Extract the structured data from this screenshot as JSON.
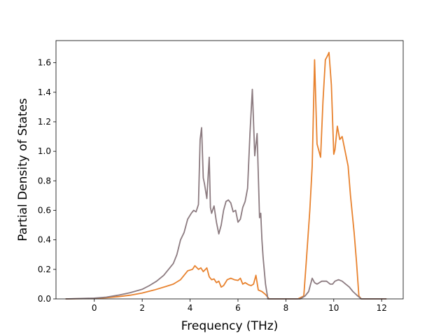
{
  "chart_data": {
    "type": "line",
    "title": "",
    "xlabel": "Frequency (THz)",
    "ylabel": "Partial Density of States",
    "xlim": [
      -1.6,
      12.9
    ],
    "ylim": [
      0.0,
      1.75
    ],
    "xticks": [
      0,
      2,
      4,
      6,
      8,
      10,
      12
    ],
    "yticks": [
      0.0,
      0.2,
      0.4,
      0.6,
      0.8,
      1.0,
      1.2,
      1.4,
      1.6
    ],
    "grid": false,
    "legend": "none",
    "series": [
      {
        "color": "#e8822e",
        "x": [
          -1.2,
          0.0,
          0.5,
          1.0,
          1.5,
          2.0,
          2.5,
          3.0,
          3.3,
          3.6,
          3.9,
          4.1,
          4.2,
          4.35,
          4.45,
          4.55,
          4.7,
          4.8,
          4.9,
          5.0,
          5.1,
          5.2,
          5.3,
          5.4,
          5.55,
          5.7,
          5.85,
          6.0,
          6.1,
          6.2,
          6.3,
          6.45,
          6.55,
          6.65,
          6.75,
          6.85,
          7.0,
          7.15,
          7.3,
          7.45,
          7.6,
          8.0,
          8.5,
          8.75,
          8.85,
          9.0,
          9.1,
          9.2,
          9.3,
          9.45,
          9.55,
          9.65,
          9.75,
          9.8,
          9.9,
          10.0,
          10.05,
          10.15,
          10.25,
          10.35,
          10.45,
          10.6,
          10.7,
          10.85,
          10.95,
          11.05,
          11.15,
          11.5,
          12.2
        ],
        "y": [
          0.0,
          0.003,
          0.008,
          0.015,
          0.025,
          0.04,
          0.06,
          0.085,
          0.1,
          0.13,
          0.19,
          0.2,
          0.225,
          0.2,
          0.21,
          0.185,
          0.21,
          0.15,
          0.13,
          0.135,
          0.11,
          0.12,
          0.08,
          0.09,
          0.13,
          0.14,
          0.13,
          0.125,
          0.14,
          0.1,
          0.11,
          0.095,
          0.09,
          0.1,
          0.16,
          0.06,
          0.05,
          0.03,
          0.0,
          0.0,
          0.0,
          0.0,
          0.0,
          0.02,
          0.25,
          0.6,
          0.9,
          1.62,
          1.05,
          0.96,
          1.34,
          1.62,
          1.65,
          1.67,
          1.45,
          0.98,
          1.01,
          1.17,
          1.08,
          1.1,
          1.02,
          0.9,
          0.7,
          0.45,
          0.25,
          0.02,
          0.0,
          0.0,
          0.0
        ]
      },
      {
        "color": "#8c7b80",
        "x": [
          -1.2,
          0.0,
          0.5,
          1.0,
          1.5,
          2.0,
          2.3,
          2.6,
          2.9,
          3.1,
          3.3,
          3.45,
          3.6,
          3.75,
          3.9,
          4.05,
          4.15,
          4.25,
          4.35,
          4.42,
          4.48,
          4.55,
          4.6,
          4.7,
          4.8,
          4.85,
          4.9,
          5.0,
          5.1,
          5.2,
          5.3,
          5.4,
          5.5,
          5.6,
          5.7,
          5.8,
          5.9,
          6.0,
          6.1,
          6.2,
          6.3,
          6.4,
          6.5,
          6.6,
          6.65,
          6.7,
          6.8,
          6.9,
          6.95,
          7.0,
          7.05,
          7.15,
          7.25,
          7.35,
          7.45,
          7.6,
          8.0,
          8.6,
          8.8,
          8.95,
          9.1,
          9.2,
          9.3,
          9.5,
          9.7,
          9.85,
          9.95,
          10.05,
          10.2,
          10.35,
          10.5,
          10.65,
          10.8,
          11.0,
          11.15,
          11.5,
          12.2
        ],
        "y": [
          0.0,
          0.005,
          0.012,
          0.025,
          0.042,
          0.065,
          0.09,
          0.12,
          0.16,
          0.2,
          0.24,
          0.3,
          0.4,
          0.45,
          0.54,
          0.58,
          0.6,
          0.59,
          0.64,
          1.08,
          1.16,
          0.82,
          0.78,
          0.68,
          0.96,
          0.62,
          0.58,
          0.63,
          0.52,
          0.44,
          0.5,
          0.6,
          0.66,
          0.67,
          0.65,
          0.59,
          0.6,
          0.52,
          0.54,
          0.62,
          0.66,
          0.75,
          1.12,
          1.42,
          1.2,
          0.97,
          1.12,
          0.55,
          0.58,
          0.4,
          0.28,
          0.1,
          0.0,
          0.0,
          0.0,
          0.0,
          0.0,
          0.0,
          0.02,
          0.05,
          0.14,
          0.11,
          0.1,
          0.12,
          0.12,
          0.1,
          0.1,
          0.12,
          0.13,
          0.12,
          0.1,
          0.08,
          0.05,
          0.02,
          0.0,
          0.0,
          0.0
        ]
      }
    ]
  }
}
